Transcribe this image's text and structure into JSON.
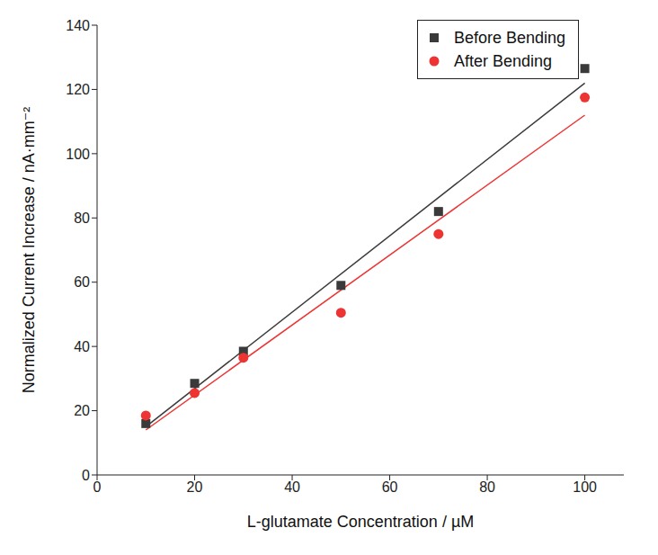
{
  "chart_data": {
    "type": "scatter",
    "x_label": "L-glutamate Concentration / µM",
    "y_label": "Normalized Current Increase / nA·mm⁻²",
    "x": [
      10,
      20,
      30,
      50,
      70,
      100
    ],
    "xlim": [
      0,
      108
    ],
    "xticks": [
      0,
      20,
      40,
      60,
      80,
      100
    ],
    "ylim": [
      0,
      140
    ],
    "yticks": [
      0,
      20,
      40,
      60,
      80,
      100,
      120,
      140
    ],
    "legend": "top-right",
    "series": [
      {
        "name": "Before Bending",
        "color": "#3a3a3a",
        "marker": "square",
        "values": [
          16,
          28.5,
          38.5,
          59,
          82,
          126.5
        ],
        "fit": {
          "x": [
            10,
            100
          ],
          "values": [
            15,
            122
          ]
        }
      },
      {
        "name": "After Bending",
        "color": "#ee3333",
        "marker": "circle",
        "values": [
          18.5,
          25.5,
          36.5,
          50.5,
          75,
          117.5
        ],
        "fit": {
          "x": [
            10,
            100
          ],
          "values": [
            14,
            112
          ]
        }
      }
    ]
  }
}
